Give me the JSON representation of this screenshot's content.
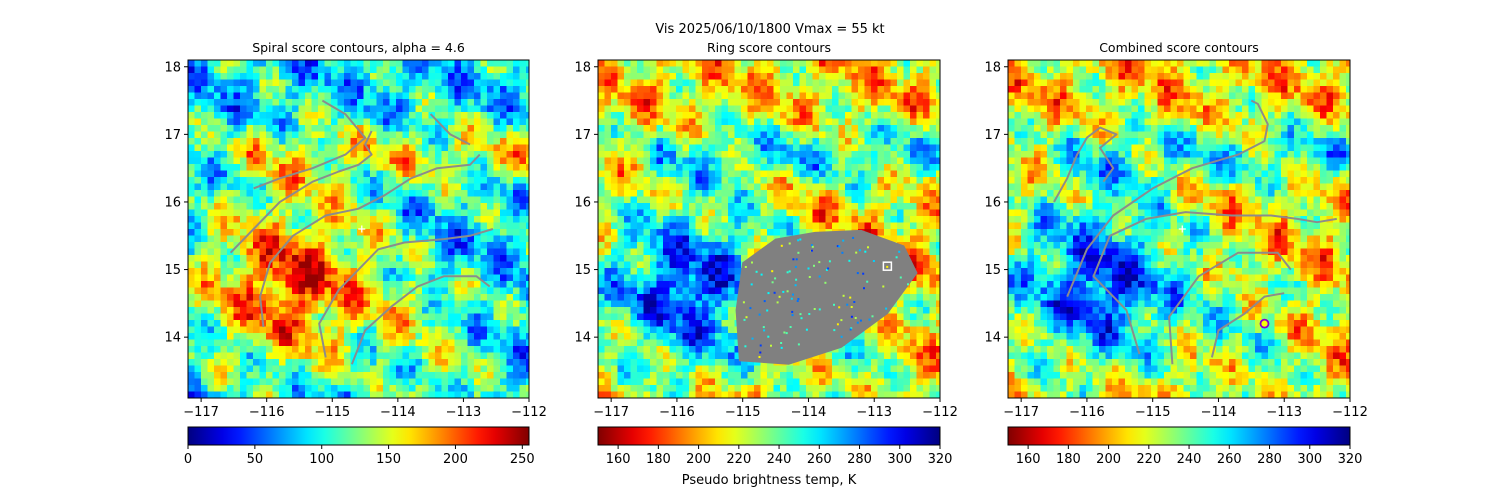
{
  "figure": {
    "suptitle": "Vis  2025/06/10/1800    Vmax = 55 kt",
    "colorbar_label": "Pseudo brightness temp, K"
  },
  "chart_data": [
    {
      "type": "heatmap",
      "title": "Spiral score contours, alpha =  4.6",
      "xlim": [
        -117.2,
        -112.0
      ],
      "ylim": [
        13.1,
        18.1
      ],
      "xticks": [
        -117,
        -116,
        -115,
        -114,
        -113,
        -112
      ],
      "xtick_labels": [
        "−117",
        "−116",
        "−115",
        "−114",
        "−113",
        "−112"
      ],
      "yticks": [
        14,
        15,
        16,
        17,
        18
      ],
      "ytick_labels": [
        "14",
        "15",
        "16",
        "17",
        "18"
      ],
      "colormap": "jet",
      "colorbar": {
        "min": 0,
        "max": 255,
        "reversed": false,
        "ticks": [
          0,
          50,
          100,
          150,
          200,
          250
        ],
        "tick_labels": [
          "0",
          "50",
          "100",
          "150",
          "200",
          "250"
        ]
      },
      "cold_core": {
        "lon": -115.6,
        "lat": 14.8
      },
      "contours": [
        [
          [
            -116.55,
            15.25
          ],
          [
            -116.2,
            15.6
          ],
          [
            -115.8,
            16.0
          ],
          [
            -115.3,
            16.3
          ],
          [
            -114.9,
            16.45
          ],
          [
            -114.6,
            16.55
          ],
          [
            -114.4,
            16.7
          ],
          [
            -114.5,
            16.85
          ],
          [
            -114.4,
            17.05
          ]
        ],
        [
          [
            -115.15,
            17.5
          ],
          [
            -114.8,
            17.3
          ],
          [
            -114.5,
            16.95
          ],
          [
            -114.8,
            16.7
          ],
          [
            -115.3,
            16.5
          ],
          [
            -115.8,
            16.35
          ],
          [
            -116.2,
            16.2
          ]
        ],
        [
          [
            -116.05,
            14.15
          ],
          [
            -116.1,
            14.6
          ],
          [
            -115.95,
            15.1
          ],
          [
            -115.6,
            15.5
          ],
          [
            -115.1,
            15.8
          ],
          [
            -114.6,
            15.9
          ],
          [
            -114.2,
            16.1
          ],
          [
            -113.8,
            16.35
          ],
          [
            -113.4,
            16.5
          ],
          [
            -112.9,
            16.55
          ],
          [
            -112.75,
            16.7
          ]
        ],
        [
          [
            -113.5,
            17.3
          ],
          [
            -113.2,
            17.0
          ],
          [
            -112.9,
            16.85
          ]
        ],
        [
          [
            -115.1,
            13.7
          ],
          [
            -115.2,
            14.2
          ],
          [
            -114.9,
            14.7
          ],
          [
            -114.6,
            15.0
          ],
          [
            -114.3,
            15.3
          ],
          [
            -113.9,
            15.4
          ],
          [
            -113.3,
            15.45
          ],
          [
            -112.9,
            15.5
          ],
          [
            -112.55,
            15.6
          ]
        ],
        [
          [
            -114.7,
            13.6
          ],
          [
            -114.5,
            14.1
          ],
          [
            -114.1,
            14.45
          ],
          [
            -113.7,
            14.75
          ],
          [
            -113.3,
            14.9
          ],
          [
            -112.8,
            14.9
          ],
          [
            -112.6,
            14.75
          ]
        ]
      ],
      "markers": [
        {
          "symbol": "plus",
          "color": "#ffffff",
          "lon": -114.55,
          "lat": 15.6
        }
      ]
    },
    {
      "type": "heatmap",
      "title": "Ring score contours",
      "xlim": [
        -117.2,
        -112.0
      ],
      "ylim": [
        13.1,
        18.1
      ],
      "xticks": [
        -117,
        -116,
        -115,
        -114,
        -113,
        -112
      ],
      "xtick_labels": [
        "−117",
        "−116",
        "−115",
        "−114",
        "−113",
        "−112"
      ],
      "yticks": [
        14,
        15,
        16,
        17,
        18
      ],
      "ytick_labels": [
        "14",
        "15",
        "16",
        "17",
        "18"
      ],
      "colormap": "jet_r",
      "colorbar": {
        "min": 150,
        "max": 320,
        "reversed": true,
        "ticks": [
          160,
          180,
          200,
          220,
          240,
          260,
          280,
          300,
          320
        ],
        "tick_labels": [
          "160",
          "180",
          "200",
          "220",
          "240",
          "260",
          "280",
          "300",
          "320"
        ]
      },
      "cold_core": {
        "lon": -115.8,
        "lat": 14.7
      },
      "masked_region": {
        "color": "#808080",
        "outline": [
          [
            -115.05,
            13.65
          ],
          [
            -115.1,
            14.4
          ],
          [
            -115.0,
            15.1
          ],
          [
            -114.5,
            15.45
          ],
          [
            -113.9,
            15.55
          ],
          [
            -113.2,
            15.58
          ],
          [
            -112.55,
            15.35
          ],
          [
            -112.35,
            14.95
          ],
          [
            -112.8,
            14.35
          ],
          [
            -113.5,
            13.85
          ],
          [
            -114.3,
            13.6
          ]
        ]
      },
      "markers": [
        {
          "symbol": "square",
          "color": "#ffffff",
          "lon": -112.8,
          "lat": 15.05
        }
      ]
    },
    {
      "type": "heatmap",
      "title": "Combined score contours",
      "xlim": [
        -117.2,
        -112.0
      ],
      "ylim": [
        13.1,
        18.1
      ],
      "xticks": [
        -117,
        -116,
        -115,
        -114,
        -113,
        -112
      ],
      "xtick_labels": [
        "−117",
        "−116",
        "−115",
        "−114",
        "−113",
        "−112"
      ],
      "yticks": [
        14,
        15,
        16,
        17,
        18
      ],
      "ytick_labels": [
        "14",
        "15",
        "16",
        "17",
        "18"
      ],
      "colormap": "jet_r",
      "colorbar": {
        "min": 150,
        "max": 320,
        "reversed": true,
        "ticks": [
          160,
          180,
          200,
          220,
          240,
          260,
          280,
          300,
          320
        ],
        "tick_labels": [
          "160",
          "180",
          "200",
          "220",
          "240",
          "260",
          "280",
          "300",
          "320"
        ]
      },
      "cold_core": {
        "lon": -115.8,
        "lat": 14.8
      },
      "contours": [
        [
          [
            -116.3,
            14.6
          ],
          [
            -116.0,
            15.3
          ],
          [
            -115.6,
            15.8
          ],
          [
            -115.0,
            16.2
          ],
          [
            -114.4,
            16.5
          ],
          [
            -113.7,
            16.7
          ],
          [
            -113.3,
            16.9
          ],
          [
            -113.25,
            17.15
          ],
          [
            -113.4,
            17.45
          ],
          [
            -113.5,
            17.5
          ]
        ],
        [
          [
            -116.5,
            16.0
          ],
          [
            -116.3,
            16.35
          ],
          [
            -116.15,
            16.7
          ],
          [
            -116.0,
            16.95
          ],
          [
            -115.8,
            17.1
          ],
          [
            -115.55,
            17.0
          ],
          [
            -115.8,
            16.8
          ],
          [
            -115.6,
            16.5
          ],
          [
            -115.75,
            16.3
          ]
        ],
        [
          [
            -115.2,
            13.75
          ],
          [
            -115.4,
            14.4
          ],
          [
            -115.9,
            14.9
          ],
          [
            -115.65,
            15.5
          ],
          [
            -115.1,
            15.75
          ],
          [
            -114.5,
            15.85
          ],
          [
            -113.8,
            15.8
          ],
          [
            -113.2,
            15.8
          ],
          [
            -112.8,
            15.75
          ],
          [
            -112.5,
            15.7
          ],
          [
            -112.2,
            15.75
          ]
        ],
        [
          [
            -114.7,
            13.6
          ],
          [
            -114.75,
            14.3
          ],
          [
            -114.3,
            14.9
          ],
          [
            -113.7,
            15.25
          ],
          [
            -113.1,
            15.25
          ],
          [
            -112.9,
            15.0
          ]
        ],
        [
          [
            -114.1,
            13.7
          ],
          [
            -114.0,
            14.1
          ],
          [
            -113.6,
            14.35
          ],
          [
            -113.3,
            14.6
          ],
          [
            -113.0,
            14.65
          ]
        ]
      ],
      "markers": [
        {
          "symbol": "plus",
          "color": "#ffffff",
          "lon": -114.55,
          "lat": 15.6
        },
        {
          "symbol": "circle",
          "color": "#8b00cc",
          "lon": -113.3,
          "lat": 14.2
        }
      ]
    }
  ]
}
